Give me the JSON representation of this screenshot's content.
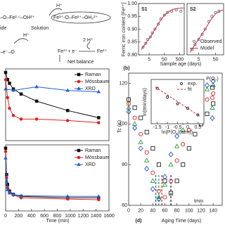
{
  "diagram": {
    "labels": [
      "H⁺",
      "–O–Fe²·⁵–OH²⁺",
      "Fe³⁺-O–Fe²⁺–OH₂²⁺",
      "ide",
      "Solution",
      "H⁺",
      "–e⁻–O",
      "2 H⁺",
      "Fe³⁺+ e⁻",
      "Fe²⁺",
      "Net balance"
    ]
  },
  "chart_data": [
    {
      "type": "scatter",
      "label": "S1",
      "panel_label": "(b)",
      "y_label": "Ferric iron content [Fe³⁺]",
      "x_label": "Sample age (days)",
      "log_x": true,
      "xlim": [
        1,
        1000
      ],
      "xticks": [
        5,
        50,
        500
      ],
      "ylim": [
        0.8,
        1.0
      ],
      "yticks": [
        {
          "value": 0.8,
          "label": "0.80"
        },
        0.85,
        {
          "value": 0.9,
          "label": "0.90"
        },
        0.95,
        {
          "value": 1.0,
          "label": "1.00"
        }
      ],
      "series": [
        {
          "mode": "markers",
          "marker": "circle",
          "color": "#777777",
          "filled": false,
          "x": [
            2,
            3,
            4,
            6,
            8,
            12,
            20,
            30,
            50,
            80,
            150,
            300,
            600
          ],
          "values": [
            0.83,
            0.845,
            0.86,
            0.87,
            0.885,
            0.9,
            0.92,
            0.94,
            0.955,
            0.965,
            0.97,
            0.975,
            0.97
          ]
        },
        {
          "mode": "lines",
          "color": "#d0304a",
          "x": [
            1.5,
            3,
            6,
            12,
            25,
            50,
            100,
            200,
            500,
            900
          ],
          "values": [
            0.82,
            0.845,
            0.87,
            0.9,
            0.93,
            0.955,
            0.97,
            0.978,
            0.982,
            0.983
          ]
        }
      ]
    },
    {
      "type": "scatter",
      "label": "S2",
      "log_x": true,
      "xlim": [
        1,
        150
      ],
      "xticks": [
        5,
        50
      ],
      "ylim": [
        0.8,
        1.0
      ],
      "legend": true,
      "series": [
        {
          "name": "Observed",
          "mode": "markers",
          "marker": "circle",
          "color": "#777777",
          "filled": false,
          "x": [
            2,
            3,
            5,
            8,
            12,
            20,
            30,
            50,
            80
          ],
          "values": [
            0.82,
            0.84,
            0.86,
            0.88,
            0.9,
            0.93,
            0.95,
            0.965,
            0.97
          ]
        },
        {
          "name": "Model",
          "mode": "lines",
          "color": "#d0304a",
          "x": [
            1.5,
            3,
            6,
            12,
            25,
            50,
            100,
            140
          ],
          "values": [
            0.81,
            0.84,
            0.87,
            0.9,
            0.935,
            0.96,
            0.972,
            0.975
          ]
        }
      ]
    },
    {
      "type": "line",
      "xlim": [
        0,
        1600
      ],
      "ylim": [
        0,
        1
      ],
      "legend": true,
      "series": [
        {
          "name": "Raman",
          "mode": "lines+markers",
          "marker": "square",
          "color": "#111111",
          "filled": true,
          "x": [
            0,
            30,
            60,
            120,
            240,
            480,
            960,
            1440
          ],
          "values": [
            0.95,
            0.85,
            0.8,
            0.72,
            0.65,
            0.55,
            0.42,
            0.32
          ]
        },
        {
          "name": "Mössbauer",
          "mode": "lines+markers",
          "marker": "circle",
          "color": "#e02020",
          "filled": true,
          "x": [
            0,
            30,
            60,
            120,
            240,
            480,
            960,
            1440
          ],
          "values": [
            0.85,
            0.6,
            0.45,
            0.35,
            0.3,
            0.3,
            0.28,
            0.25
          ]
        },
        {
          "name": "XRD",
          "mode": "lines+markers",
          "marker": "triangle",
          "color": "#2060d0",
          "filled": true,
          "x": [
            0,
            120,
            480,
            960,
            1440
          ],
          "values": [
            0.72,
            0.7,
            0.75,
            0.7,
            0.68
          ]
        }
      ]
    },
    {
      "type": "line",
      "x_label": "Time (min)",
      "xlim": [
        0,
        1600
      ],
      "xticks": [
        0,
        200,
        400,
        600,
        800,
        1000,
        1200,
        1400,
        1600
      ],
      "ylim": [
        0,
        1
      ],
      "legend": true,
      "series": [
        {
          "name": "Raman",
          "mode": "lines+markers",
          "marker": "square",
          "color": "#111111",
          "filled": true,
          "x": [
            0,
            15,
            30,
            60,
            120,
            240,
            960,
            1440
          ],
          "values": [
            0.95,
            0.55,
            0.4,
            0.3,
            0.25,
            0.22,
            0.2,
            0.2
          ]
        },
        {
          "name": "Mössbauer",
          "mode": "lines+markers",
          "marker": "circle",
          "color": "#e02020",
          "filled": true,
          "x": [
            0,
            15,
            30,
            60,
            120,
            240,
            960,
            1440
          ],
          "values": [
            0.9,
            0.5,
            0.35,
            0.28,
            0.24,
            0.2,
            0.18,
            0.17
          ]
        },
        {
          "name": "XRD",
          "mode": "lines+markers",
          "marker": "triangle",
          "color": "#2060d0",
          "filled": true,
          "x": [
            0,
            15,
            30,
            60,
            120,
            240,
            960,
            1440
          ],
          "values": [
            0.8,
            0.45,
            0.32,
            0.27,
            0.25,
            0.23,
            0.22,
            0.22
          ]
        }
      ]
    },
    {
      "type": "scatter",
      "panel_label": "(d)",
      "x_label": "Aging Time (days)",
      "y_label": "Tc (K)",
      "annotation": "tmin",
      "legend": true,
      "legend_title": "P(O₂)",
      "xlim": [
        0,
        155
      ],
      "xticks": [
        0,
        20,
        40,
        60,
        80,
        100,
        120,
        140
      ],
      "ylim": [
        60,
        125
      ],
      "yticks": [
        60,
        80,
        100,
        120
      ],
      "min_lines": [
        70,
        55,
        50,
        45
      ],
      "series": [
        {
          "mode": "markers",
          "marker": "square",
          "color": "#222222",
          "filled": false,
          "x": [
            0,
            10,
            20,
            30,
            40,
            50,
            60,
            70,
            80,
            90,
            100,
            110,
            120,
            130,
            140
          ],
          "values": [
            112,
            108,
            103,
            96,
            88,
            80,
            72,
            66,
            72,
            80,
            88,
            95,
            100,
            105,
            110
          ]
        },
        {
          "mode": "markers",
          "marker": "circle",
          "color": "#e02020",
          "filled": false,
          "x": [
            0,
            10,
            20,
            30,
            40,
            50,
            60,
            70,
            80,
            90,
            100,
            110,
            120,
            130,
            140
          ],
          "values": [
            110,
            103,
            95,
            86,
            76,
            67,
            64,
            72,
            82,
            90,
            97,
            103,
            108,
            112,
            115
          ]
        },
        {
          "mode": "markers",
          "marker": "triangle",
          "color": "#20a040",
          "filled": false,
          "x": [
            0,
            10,
            20,
            30,
            40,
            50,
            60,
            70,
            80,
            90,
            100,
            110,
            120,
            130,
            140
          ],
          "values": [
            108,
            100,
            91,
            82,
            72,
            64,
            70,
            80,
            89,
            97,
            104,
            110,
            114,
            117,
            119
          ]
        },
        {
          "mode": "markers",
          "marker": "diamond",
          "color": "#2050d0",
          "filled": false,
          "x": [
            0,
            10,
            20,
            30,
            40,
            50,
            60,
            70,
            80,
            90,
            100,
            110,
            120,
            130,
            140
          ],
          "values": [
            106,
            98,
            88,
            78,
            68,
            63,
            74,
            85,
            94,
            101,
            107,
            112,
            116,
            119,
            121
          ]
        }
      ],
      "inset": {
        "type": "scatter",
        "x_label": "ln(P(O₂)(atm))",
        "y_label": "ln(tmin/days)",
        "legend": true,
        "xlim": [
          -1.8,
          0.8
        ],
        "xticks": [
          -1.5,
          -1.0,
          -0.5,
          0.0,
          0.5
        ],
        "ylim": [
          3.5,
          4.5
        ],
        "series": [
          {
            "name": "exp.",
            "mode": "markers",
            "marker": "circle",
            "color": "#222222",
            "filled": false,
            "x": [
              -1.5,
              -1.0,
              -0.5,
              0.0,
              0.5
            ],
            "values": [
              4.3,
              4.1,
              3.95,
              3.85,
              3.7
            ]
          },
          {
            "name": "fit",
            "mode": "lines",
            "dash": true,
            "color": "#e02020",
            "x": [
              -1.6,
              0.6
            ],
            "values": [
              4.33,
              3.67
            ]
          }
        ]
      }
    }
  ]
}
